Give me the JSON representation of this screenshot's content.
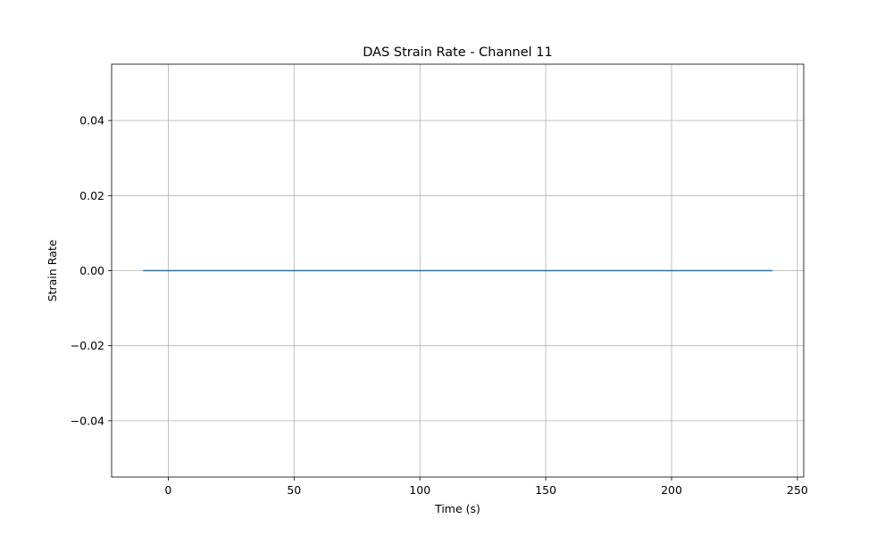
{
  "chart_data": {
    "type": "line",
    "title": "DAS Strain Rate - Channel 11",
    "xlabel": "Time (s)",
    "ylabel": "Strain Rate",
    "xlim": [
      -22.5,
      252.5
    ],
    "ylim": [
      -0.055,
      0.055
    ],
    "xticks": [
      0,
      50,
      100,
      150,
      200,
      250
    ],
    "yticks": [
      -0.04,
      -0.02,
      0.0,
      0.02,
      0.04
    ],
    "xtick_labels": [
      "0",
      "50",
      "100",
      "150",
      "200",
      "250"
    ],
    "ytick_labels": [
      "−0.04",
      "−0.02",
      "0.00",
      "0.02",
      "0.04"
    ],
    "grid": true,
    "series": [
      {
        "color": "#1f77b4",
        "x": [
          -10,
          240
        ],
        "y": [
          0.0,
          0.0
        ]
      }
    ]
  }
}
